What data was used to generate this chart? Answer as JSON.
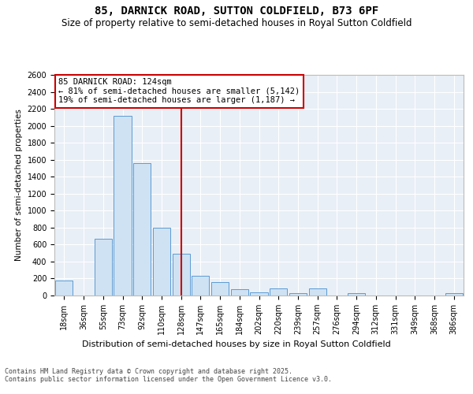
{
  "title": "85, DARNICK ROAD, SUTTON COLDFIELD, B73 6PF",
  "subtitle": "Size of property relative to semi-detached houses in Royal Sutton Coldfield",
  "xlabel": "Distribution of semi-detached houses by size in Royal Sutton Coldfield",
  "ylabel": "Number of semi-detached properties",
  "categories": [
    "18sqm",
    "36sqm",
    "55sqm",
    "73sqm",
    "92sqm",
    "110sqm",
    "128sqm",
    "147sqm",
    "165sqm",
    "184sqm",
    "202sqm",
    "220sqm",
    "239sqm",
    "257sqm",
    "276sqm",
    "294sqm",
    "312sqm",
    "331sqm",
    "349sqm",
    "368sqm",
    "386sqm"
  ],
  "values": [
    180,
    0,
    670,
    2120,
    1560,
    800,
    490,
    230,
    160,
    70,
    40,
    80,
    30,
    80,
    0,
    30,
    0,
    0,
    0,
    0,
    30
  ],
  "bar_color": "#cfe2f3",
  "bar_edge_color": "#5b9bd5",
  "highlight_index": 6,
  "highlight_line_color": "#cc0000",
  "annotation_title": "85 DARNICK ROAD: 124sqm",
  "annotation_line1": "← 81% of semi-detached houses are smaller (5,142)",
  "annotation_line2": "19% of semi-detached houses are larger (1,187) →",
  "annotation_box_color": "#cc0000",
  "ylim": [
    0,
    2600
  ],
  "background_color": "#e8eff6",
  "footer_line1": "Contains HM Land Registry data © Crown copyright and database right 2025.",
  "footer_line2": "Contains public sector information licensed under the Open Government Licence v3.0.",
  "title_fontsize": 10,
  "subtitle_fontsize": 8.5,
  "tick_fontsize": 7,
  "ylabel_fontsize": 7.5,
  "xlabel_fontsize": 8,
  "footer_fontsize": 6,
  "annot_fontsize": 7.5
}
